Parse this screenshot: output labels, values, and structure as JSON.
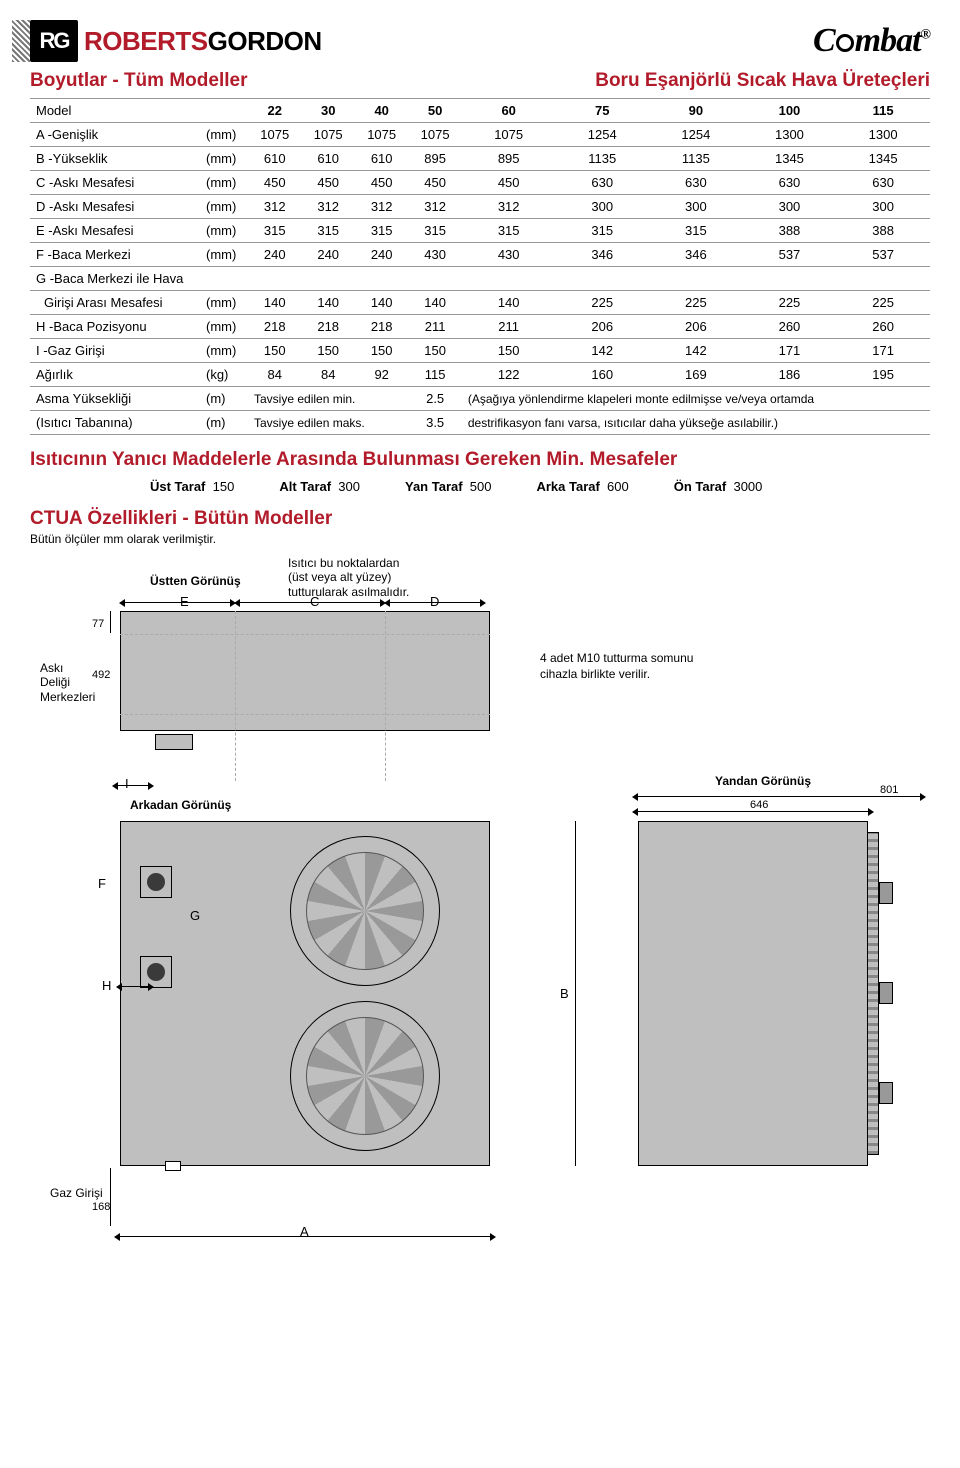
{
  "brand": {
    "rg": "RG",
    "roberts": "ROBERTS",
    "gordon": "GORDON",
    "combat": "C",
    "combat2": "mbat",
    "reg": "®"
  },
  "titles": {
    "right": "Boru Eşanjörlü Sıcak Hava Üreteçleri",
    "left": "Boyutlar - Tüm Modeller",
    "min": "Isıtıcının Yanıcı Maddelerle Arasında Bulunması Gereken Min. Mesafeler",
    "ctua": "CTUA Özellikleri - Bütün Modeller",
    "ctua_sub": "Bütün ölçüler mm olarak verilmiştir."
  },
  "cols": [
    "Model",
    "",
    "22",
    "30",
    "40",
    "50",
    "60",
    "75",
    "90",
    "100",
    "115"
  ],
  "rows": [
    [
      "A -Genişlik",
      "(mm)",
      "1075",
      "1075",
      "1075",
      "1075",
      "1075",
      "1254",
      "1254",
      "1300",
      "1300"
    ],
    [
      "B -Yükseklik",
      "(mm)",
      "610",
      "610",
      "610",
      "895",
      "895",
      "1135",
      "1135",
      "1345",
      "1345"
    ],
    [
      "C -Askı Mesafesi",
      "(mm)",
      "450",
      "450",
      "450",
      "450",
      "450",
      "630",
      "630",
      "630",
      "630"
    ],
    [
      "D -Askı Mesafesi",
      "(mm)",
      "312",
      "312",
      "312",
      "312",
      "312",
      "300",
      "300",
      "300",
      "300"
    ],
    [
      "E -Askı Mesafesi",
      "(mm)",
      "315",
      "315",
      "315",
      "315",
      "315",
      "315",
      "315",
      "388",
      "388"
    ],
    [
      "F -Baca Merkezi",
      "(mm)",
      "240",
      "240",
      "240",
      "430",
      "430",
      "346",
      "346",
      "537",
      "537"
    ],
    [
      "G -Baca Merkezi ile Hava",
      "",
      "",
      "",
      "",
      "",
      "",
      "",
      "",
      "",
      ""
    ],
    [
      "Girişi Arası Mesafesi",
      "(mm)",
      "140",
      "140",
      "140",
      "140",
      "140",
      "225",
      "225",
      "225",
      "225"
    ],
    [
      "H -Baca Pozisyonu",
      "(mm)",
      "218",
      "218",
      "218",
      "211",
      "211",
      "206",
      "206",
      "260",
      "260"
    ],
    [
      "I  -Gaz Girişi",
      "(mm)",
      "150",
      "150",
      "150",
      "150",
      "150",
      "142",
      "142",
      "171",
      "171"
    ],
    [
      "Ağırlık",
      "(kg)",
      "84",
      "84",
      "92",
      "115",
      "122",
      "160",
      "169",
      "186",
      "195"
    ]
  ],
  "advice_rows": [
    {
      "label": "Asma Yüksekliği",
      "unit": "(m)",
      "left": "Tavsiye edilen min.",
      "val": "2.5",
      "note": "(Aşağıya yönlendirme klapeleri monte edilmişse ve/veya ortamda"
    },
    {
      "label": "(Isıtıcı Tabanına)",
      "unit": "(m)",
      "left": "Tavsiye edilen maks.",
      "val": "3.5",
      "note": "destrifikasyon fanı varsa, ısıtıcılar daha yükseğe asılabilir.)"
    }
  ],
  "min_dist": [
    {
      "k": "Üst Taraf",
      "v": "150"
    },
    {
      "k": "Alt Taraf",
      "v": "300"
    },
    {
      "k": "Yan Taraf",
      "v": "500"
    },
    {
      "k": "Arka Taraf",
      "v": "600"
    },
    {
      "k": "Ön Taraf",
      "v": "3000"
    }
  ],
  "diagram": {
    "top_view": "Üstten Görünüş",
    "hang_note_l1": "Isıtıcı bu noktalardan",
    "hang_note_l2": "(üst veya alt yüzey)",
    "hang_note_l3": "tutturularak asılmalıdır.",
    "aski": "Askı\nDeliği\nMerkezleri",
    "bolt_note": "4 adet M10 tutturma somunu\ncihazla birlikte verilir.",
    "rear": "Arkadan Görünüş",
    "side": "Yandan Görünüş",
    "gas": "Gaz Girişi",
    "dims": {
      "d77": "77",
      "d492": "492",
      "d801": "801",
      "d646": "646",
      "d168": "168"
    },
    "letters": {
      "E": "E",
      "C": "C",
      "D": "D",
      "I": "I",
      "F": "F",
      "G": "G",
      "H": "H",
      "B": "B",
      "A": "A"
    }
  },
  "colors": {
    "red": "#b21b2a",
    "grey": "#bfbfbf",
    "line": "#999999"
  }
}
